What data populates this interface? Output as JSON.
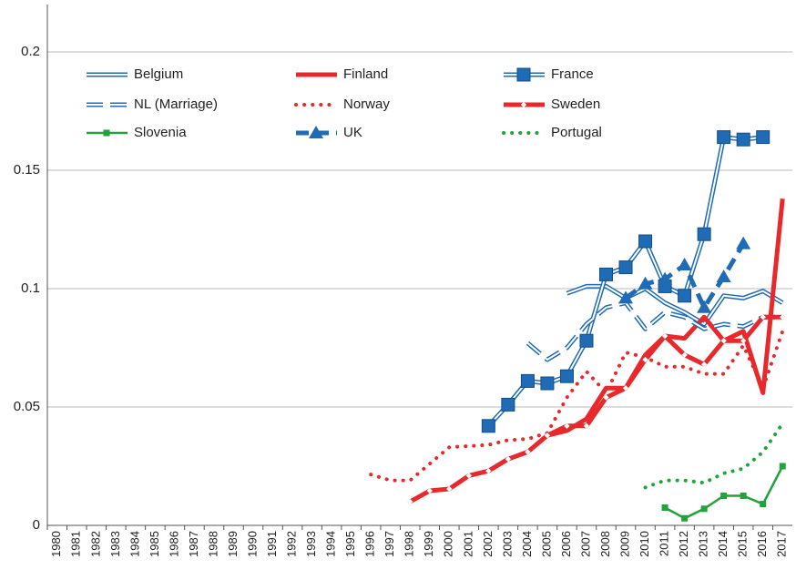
{
  "chart_data": {
    "type": "line",
    "categories": [
      "1980",
      "1981",
      "1982",
      "1983",
      "1984",
      "1985",
      "1986",
      "1987",
      "1988",
      "1989",
      "1990",
      "1991",
      "1992",
      "1993",
      "1994",
      "1995",
      "1996",
      "1997",
      "1998",
      "1999",
      "2000",
      "2001",
      "2002",
      "2003",
      "2004",
      "2005",
      "2006",
      "2007",
      "2008",
      "2009",
      "2010",
      "2011",
      "2012",
      "2013",
      "2014",
      "2015",
      "2016",
      "2017"
    ],
    "ylim": [
      0,
      0.22
    ],
    "yticks": [
      0,
      0.05,
      0.1,
      0.15,
      0.2
    ],
    "grid": true,
    "series": [
      {
        "name": "Belgium",
        "color": "#1f6bb5",
        "style": "double",
        "values": [
          null,
          null,
          null,
          null,
          null,
          null,
          null,
          null,
          null,
          null,
          null,
          null,
          null,
          null,
          null,
          null,
          null,
          null,
          null,
          null,
          null,
          null,
          null,
          null,
          null,
          null,
          0.098,
          0.101,
          0.101,
          0.096,
          0.1,
          0.094,
          0.09,
          0.085,
          0.097,
          0.096,
          0.099,
          0.094
        ]
      },
      {
        "name": "Finland",
        "color": "#e8282b",
        "style": "thick",
        "values": [
          null,
          null,
          null,
          null,
          null,
          null,
          null,
          null,
          null,
          null,
          null,
          null,
          null,
          null,
          null,
          null,
          null,
          null,
          null,
          null,
          null,
          null,
          null,
          null,
          null,
          0.038,
          0.04,
          0.045,
          0.058,
          0.058,
          0.072,
          0.08,
          0.079,
          0.088,
          0.078,
          0.082,
          0.056,
          0.138
        ]
      },
      {
        "name": "France",
        "color": "#1f6bb5",
        "style": "double",
        "marker": "square",
        "values": [
          null,
          null,
          null,
          null,
          null,
          null,
          null,
          null,
          null,
          null,
          null,
          null,
          null,
          null,
          null,
          null,
          null,
          null,
          null,
          null,
          null,
          null,
          0.042,
          0.051,
          0.061,
          0.06,
          0.063,
          0.078,
          0.106,
          0.109,
          0.12,
          0.101,
          0.097,
          0.123,
          0.164,
          0.163,
          0.164,
          null
        ]
      },
      {
        "name": "NL (Marriage)",
        "color": "#1f6bb5",
        "style": "dashed-double",
        "values": [
          null,
          null,
          null,
          null,
          null,
          null,
          null,
          null,
          null,
          null,
          null,
          null,
          null,
          null,
          null,
          null,
          null,
          null,
          null,
          null,
          null,
          null,
          null,
          null,
          0.077,
          0.07,
          0.075,
          0.085,
          0.092,
          0.094,
          0.083,
          0.09,
          0.088,
          0.083,
          0.085,
          0.084,
          0.088,
          0.088
        ]
      },
      {
        "name": "Norway",
        "color": "#e8282b",
        "style": "dotted",
        "values": [
          null,
          null,
          null,
          null,
          null,
          null,
          null,
          null,
          null,
          null,
          null,
          null,
          null,
          null,
          null,
          null,
          0.0215,
          0.019,
          0.019,
          0.026,
          0.033,
          0.0335,
          0.034,
          0.036,
          0.0365,
          0.039,
          0.054,
          0.065,
          0.056,
          0.073,
          0.071,
          0.067,
          0.067,
          0.064,
          0.064,
          0.076,
          0.058,
          0.082
        ]
      },
      {
        "name": "Sweden",
        "color": "#e8282b",
        "style": "thick",
        "marker": "diamond",
        "values": [
          null,
          null,
          null,
          null,
          null,
          null,
          null,
          null,
          null,
          null,
          null,
          null,
          null,
          null,
          null,
          null,
          null,
          null,
          0.01,
          0.0146,
          0.0154,
          0.021,
          0.023,
          0.028,
          0.031,
          0.038,
          0.042,
          0.042,
          0.054,
          0.058,
          0.07,
          0.08,
          0.072,
          0.068,
          0.078,
          0.078,
          0.088,
          0.088
        ]
      },
      {
        "name": "Slovenia",
        "color": "#1fa33a",
        "style": "solid",
        "marker": "small-square",
        "values": [
          null,
          null,
          null,
          null,
          null,
          null,
          null,
          null,
          null,
          null,
          null,
          null,
          null,
          null,
          null,
          null,
          null,
          null,
          null,
          null,
          null,
          null,
          null,
          null,
          null,
          null,
          null,
          null,
          null,
          null,
          null,
          0.0075,
          0.003,
          0.007,
          0.0125,
          0.0125,
          0.009,
          0.025
        ]
      },
      {
        "name": "UK",
        "color": "#1f6bb5",
        "style": "thick-dashed",
        "marker": "triangle",
        "values": [
          null,
          null,
          null,
          null,
          null,
          null,
          null,
          null,
          null,
          null,
          null,
          null,
          null,
          null,
          null,
          null,
          null,
          null,
          null,
          null,
          null,
          null,
          null,
          null,
          null,
          null,
          null,
          null,
          null,
          0.096,
          0.102,
          0.104,
          0.11,
          0.092,
          0.105,
          0.119,
          null,
          null
        ]
      },
      {
        "name": "Portugal",
        "color": "#1fa33a",
        "style": "dotted",
        "values": [
          null,
          null,
          null,
          null,
          null,
          null,
          null,
          null,
          null,
          null,
          null,
          null,
          null,
          null,
          null,
          null,
          null,
          null,
          null,
          null,
          null,
          null,
          null,
          null,
          null,
          null,
          null,
          null,
          null,
          null,
          0.016,
          0.019,
          0.019,
          0.018,
          0.022,
          0.024,
          0.031,
          0.043
        ]
      }
    ]
  }
}
